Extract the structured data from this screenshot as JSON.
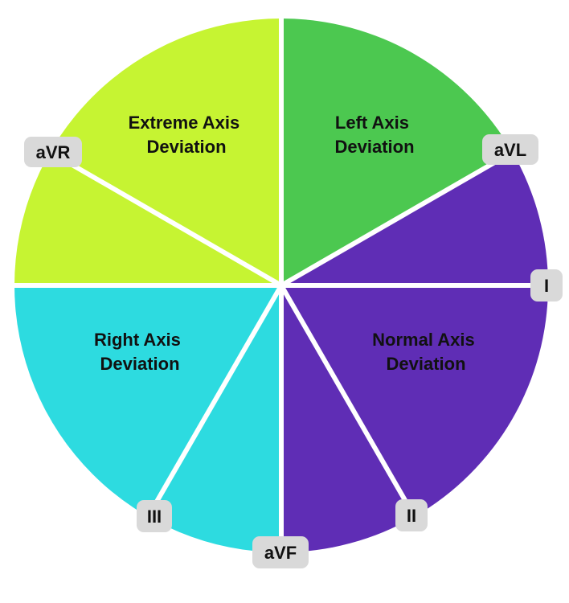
{
  "regions": {
    "extreme": {
      "line1": "Extreme Axis",
      "line2": "Deviation",
      "color": "#c6f432"
    },
    "left": {
      "line1": "Left Axis",
      "line2": "Deviation",
      "color": "#4cc850"
    },
    "normal": {
      "line1": "Normal Axis",
      "line2": "Deviation",
      "color": "#5f2db5"
    },
    "right": {
      "line1": "Right Axis",
      "line2": "Deviation",
      "color": "#2ddbe0"
    }
  },
  "leads": {
    "avr": "aVR",
    "avl": "aVL",
    "i": "I",
    "ii": "II",
    "iii": "III",
    "avf": "aVF"
  },
  "colors": {
    "divider": "#ffffff",
    "lead_box": "#d9d9d9",
    "text": "#111111"
  }
}
